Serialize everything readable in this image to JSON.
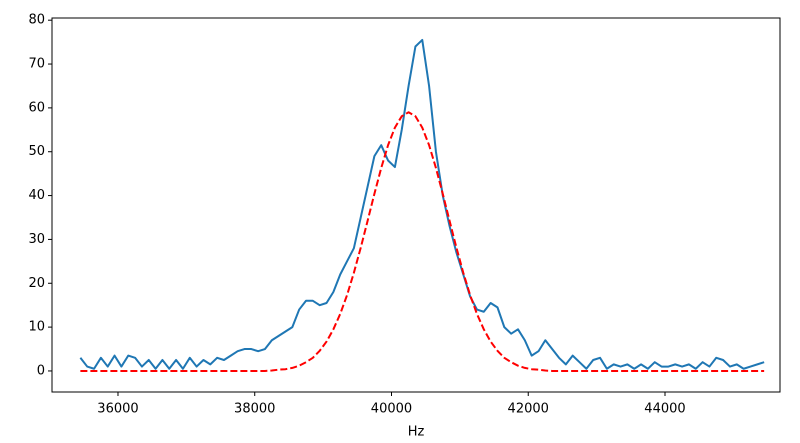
{
  "chart_data": {
    "type": "line",
    "xlabel": "Hz",
    "x": [
      35450,
      35550,
      35650,
      35750,
      35850,
      35950,
      36050,
      36150,
      36250,
      36350,
      36450,
      36550,
      36650,
      36750,
      36850,
      36950,
      37050,
      37150,
      37250,
      37350,
      37450,
      37550,
      37650,
      37750,
      37850,
      37950,
      38050,
      38150,
      38250,
      38350,
      38450,
      38550,
      38650,
      38750,
      38850,
      38950,
      39050,
      39150,
      39250,
      39350,
      39450,
      39550,
      39650,
      39750,
      39850,
      39950,
      40050,
      40150,
      40250,
      40350,
      40450,
      40550,
      40650,
      40750,
      40850,
      40950,
      41050,
      41150,
      41250,
      41350,
      41450,
      41550,
      41650,
      41750,
      41850,
      41950,
      42050,
      42150,
      42250,
      42350,
      42450,
      42550,
      42650,
      42750,
      42850,
      42950,
      43050,
      43150,
      43250,
      43350,
      43450,
      43550,
      43650,
      43750,
      43850,
      43950,
      44050,
      44150,
      44250,
      44350,
      44450,
      44550,
      44650,
      44750,
      44850,
      44950,
      45050,
      45150,
      45250,
      45350,
      45450
    ],
    "series": [
      {
        "color": "#1f77b4",
        "dash": false,
        "values": [
          3,
          1,
          0.5,
          3,
          1,
          3.5,
          1,
          3.5,
          3,
          1,
          2.5,
          0.5,
          2.5,
          0.5,
          2.5,
          0.5,
          3,
          1,
          2.5,
          1.5,
          3,
          2.5,
          3.5,
          4.5,
          5,
          5,
          4.5,
          5,
          7,
          8,
          9,
          10,
          14,
          16,
          16,
          15,
          15.5,
          18,
          22,
          25,
          28,
          35,
          42,
          49,
          51.5,
          48,
          46.5,
          55,
          65,
          74,
          75.5,
          65,
          50,
          40,
          33,
          27,
          22,
          17,
          14,
          13.5,
          15.5,
          14.5,
          10,
          8.5,
          9.5,
          7,
          3.5,
          4.5,
          7,
          5,
          3,
          1.5,
          3.5,
          2,
          0.5,
          2.5,
          3,
          0.5,
          1.5,
          1,
          1.5,
          0.5,
          1.5,
          0.5,
          2,
          1,
          1,
          1.5,
          1,
          1.5,
          0.5,
          2,
          1,
          3,
          2.5,
          1,
          1.5,
          0.5,
          1,
          1.5,
          2
        ]
      },
      {
        "color": "#ff0000",
        "dash": true,
        "values": [
          0,
          0,
          0,
          0,
          0,
          0,
          0,
          0,
          0,
          0,
          0,
          0,
          0,
          0,
          0,
          0,
          0,
          0,
          0,
          0,
          0,
          0,
          0,
          0,
          0,
          0,
          0,
          0,
          0.1,
          0.3,
          0.4,
          0.7,
          1.2,
          2.0,
          3.0,
          4.6,
          6.7,
          9.5,
          13.0,
          17.3,
          22.4,
          28.1,
          34.2,
          40.4,
          46.3,
          51.5,
          55.5,
          58.1,
          59,
          58.1,
          55.5,
          51.5,
          46.3,
          40.4,
          34.2,
          28.1,
          22.4,
          17.3,
          13.0,
          9.5,
          6.7,
          4.6,
          3.0,
          2.0,
          1.2,
          0.7,
          0.4,
          0.3,
          0.1,
          0,
          0,
          0,
          0,
          0,
          0,
          0,
          0,
          0,
          0,
          0,
          0,
          0,
          0,
          0,
          0,
          0,
          0,
          0,
          0,
          0,
          0,
          0,
          0,
          0,
          0,
          0,
          0,
          0,
          0,
          0,
          0
        ]
      }
    ],
    "xlim": [
      35035,
      45682
    ],
    "xticks": [
      36000,
      38000,
      40000,
      42000,
      44000
    ],
    "ylim": [
      -4.8,
      80.5
    ],
    "yticks": [
      0,
      10,
      20,
      30,
      40,
      50,
      60,
      70,
      80
    ]
  }
}
